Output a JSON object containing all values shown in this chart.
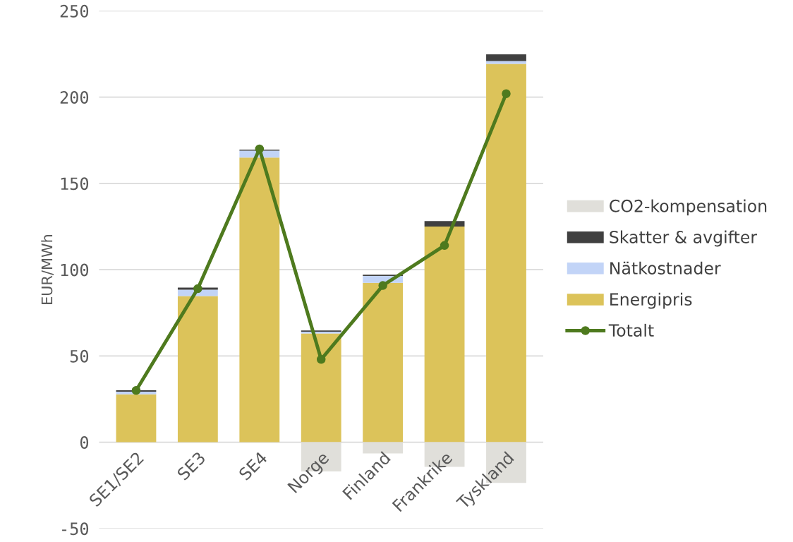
{
  "chart_data": {
    "type": "bar",
    "stacked": true,
    "ylabel": "EUR/MWh",
    "categories": [
      "SE1/SE2",
      "SE3",
      "SE4",
      "Norge",
      "Finland",
      "Frankrike",
      "Tyskland"
    ],
    "series": [
      {
        "name": "Energipris",
        "color": "#dcc35a",
        "values": [
          27.7,
          84.7,
          165,
          63,
          92.4,
          125,
          219.3
        ]
      },
      {
        "name": "Nätkostnader",
        "color": "#c2d4f7",
        "values": [
          1.6,
          3.7,
          4,
          1,
          4,
          0,
          1.6
        ]
      },
      {
        "name": "Skatter & avgifter",
        "color": "#404040",
        "values": [
          0.8,
          1.2,
          0.6,
          0.8,
          0.7,
          3.2,
          3.9
        ]
      },
      {
        "name": "CO2-kompensation",
        "color": "#e0dfda",
        "values": [
          0,
          0,
          0,
          -17,
          -6.5,
          -14.3,
          -23.6
        ]
      },
      {
        "name": "Totalt",
        "type": "line",
        "color": "#4e7a1e",
        "values": [
          30,
          89,
          170,
          48,
          90.8,
          114,
          202
        ]
      }
    ],
    "ylim": [
      -50,
      250
    ],
    "yticks": [
      -50,
      0,
      50,
      100,
      150,
      200,
      250
    ],
    "grid": "y",
    "legend": "right",
    "marker": "circle",
    "line_style": "solid"
  }
}
